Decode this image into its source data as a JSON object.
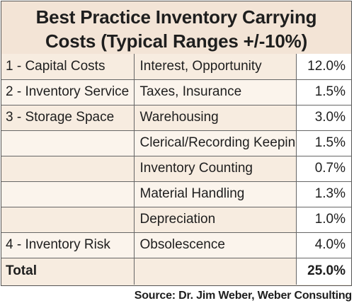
{
  "title": {
    "line1": "Best Practice Inventory Carrying",
    "line2": "Costs  (Typical Ranges +/-10%)"
  },
  "rows": [
    {
      "category": "1 - Capital Costs",
      "item": "Interest, Opportunity",
      "value": "12.0%"
    },
    {
      "category": "2 - Inventory Service",
      "item": "Taxes, Insurance",
      "value": "1.5%"
    },
    {
      "category": "3 - Storage Space",
      "item": "Warehousing",
      "value": "3.0%"
    },
    {
      "category": "",
      "item": "Clerical/Recording Keeping",
      "value": "1.5%"
    },
    {
      "category": "",
      "item": "Inventory Counting",
      "value": "0.7%"
    },
    {
      "category": "",
      "item": "Material Handling",
      "value": "1.3%"
    },
    {
      "category": "",
      "item": "Depreciation",
      "value": "1.0%"
    },
    {
      "category": "4 - Inventory Risk",
      "item": "Obsolescence",
      "value": "4.0%"
    }
  ],
  "total": {
    "label": "Total",
    "item": "",
    "value": "25.0%"
  },
  "source": "Source: Dr. Jim Weber, Weber Consulting"
}
